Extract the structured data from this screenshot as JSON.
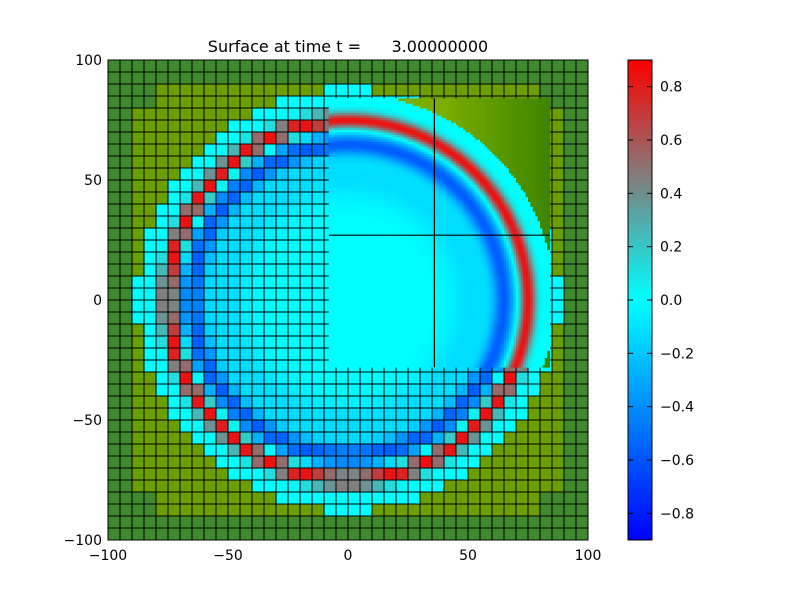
{
  "chart_data": {
    "type": "heatmap",
    "title": "Surface at time t =      3.00000000",
    "xlabel": "",
    "ylabel": "",
    "xlim": [
      -100,
      100
    ],
    "ylim": [
      -100,
      100
    ],
    "x_ticks": [
      -100,
      -50,
      0,
      50,
      100
    ],
    "y_ticks": [
      -100,
      -50,
      0,
      50,
      100
    ],
    "x_tick_labels": [
      "−100",
      "−50",
      "0",
      "50",
      "100"
    ],
    "y_tick_labels": [
      "−100",
      "−50",
      "0",
      "50",
      "100"
    ],
    "grid": false,
    "colorbar": {
      "range": [
        -0.9,
        0.9
      ],
      "ticks": [
        0.8,
        0.6,
        0.4,
        0.2,
        0.0,
        -0.2,
        -0.4,
        -0.6,
        -0.8
      ],
      "tick_labels": [
        "0.8",
        "0.6",
        "0.4",
        "0.2",
        "0.0",
        "−0.2",
        "−0.4",
        "−0.6",
        "−0.8"
      ],
      "colors": [
        "#0000ff",
        "#00ffff",
        "#ff0000"
      ],
      "placement": "right"
    },
    "field": {
      "description_free": true,
      "wave_center": [
        0,
        0
      ],
      "leading_crest_radius": 75,
      "trough_radius": 65,
      "background_value": 0.0
    },
    "coarse_grid": {
      "cell_size": 5,
      "extent": [
        -100,
        100,
        -100,
        100
      ],
      "outside_level_color": "#6b9e00",
      "corner_level_color": "#3f8a2e",
      "cell_edge_color": "#000000"
    },
    "fine_patch": {
      "extent_x": [
        -8,
        84
      ],
      "extent_y": [
        -28,
        84
      ],
      "cell_size": 1,
      "outer_level_color": "#7aad00",
      "divider_x": 36,
      "divider_y": 27
    }
  },
  "colors": {
    "figure_background": "#ffffff",
    "axes_edge": "#000000"
  }
}
